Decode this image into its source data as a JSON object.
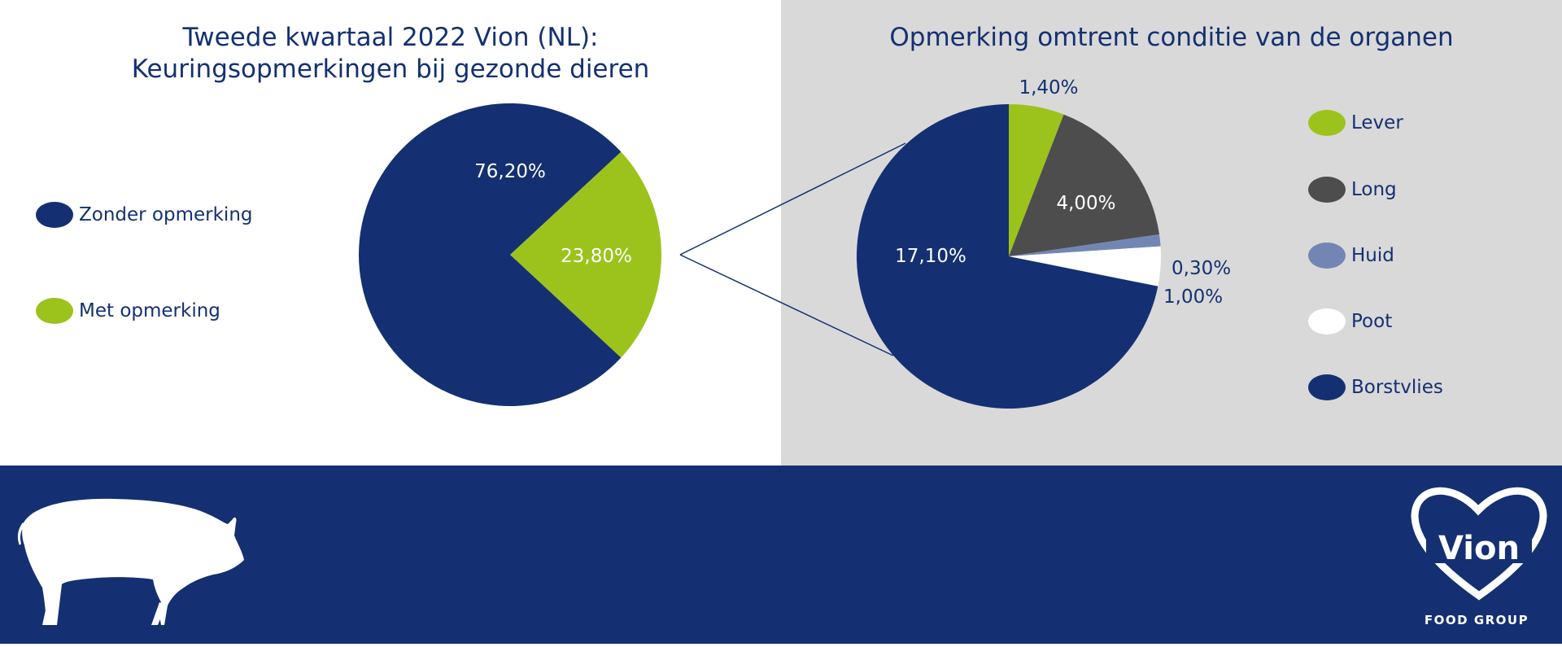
{
  "colors": {
    "navy": "#143072",
    "green": "#9cc31c",
    "dark_grey": "#4d4d4d",
    "light_blue": "#7386b3",
    "white": "#ffffff",
    "right_panel_bg": "#d9d9d9"
  },
  "left": {
    "title_line1": "Tweede kwartaal 2022 Vion (NL):",
    "title_line2": "Keuringsopmerkingen bij gezonde dieren",
    "legend": [
      {
        "label": "Zonder opmerking",
        "color": "#143072"
      },
      {
        "label": "Met opmerking",
        "color": "#9cc31c"
      }
    ]
  },
  "right": {
    "title": "Opmerking omtrent conditie van de organen",
    "legend": [
      {
        "label": "Lever",
        "color": "#9cc31c"
      },
      {
        "label": "Long",
        "color": "#4d4d4d"
      },
      {
        "label": "Huid",
        "color": "#7386b3"
      },
      {
        "label": "Poot",
        "color": "#ffffff"
      },
      {
        "label": "Borstvlies",
        "color": "#143072"
      }
    ]
  },
  "logo": {
    "brand": "Vion",
    "tagline": "FOOD GROUP"
  },
  "chart_data": [
    {
      "type": "pie",
      "title": "Tweede kwartaal 2022 Vion (NL): Keuringsopmerkingen bij gezonde dieren",
      "categories": [
        "Zonder opmerking",
        "Met opmerking"
      ],
      "values": [
        76.2,
        23.8
      ],
      "labels": [
        "76,20%",
        "23,80%"
      ],
      "colors": [
        "#143072",
        "#9cc31c"
      ],
      "legend_position": "left"
    },
    {
      "type": "pie",
      "title": "Opmerking omtrent conditie van de organen",
      "categories": [
        "Lever",
        "Long",
        "Huid",
        "Poot",
        "Borstvlies"
      ],
      "values": [
        1.4,
        4.0,
        0.3,
        1.0,
        17.1
      ],
      "labels": [
        "1,40%",
        "4,00%",
        "0,30%",
        "1,00%",
        "17,10%"
      ],
      "colors": [
        "#9cc31c",
        "#4d4d4d",
        "#7386b3",
        "#ffffff",
        "#143072"
      ],
      "legend_position": "right"
    }
  ]
}
